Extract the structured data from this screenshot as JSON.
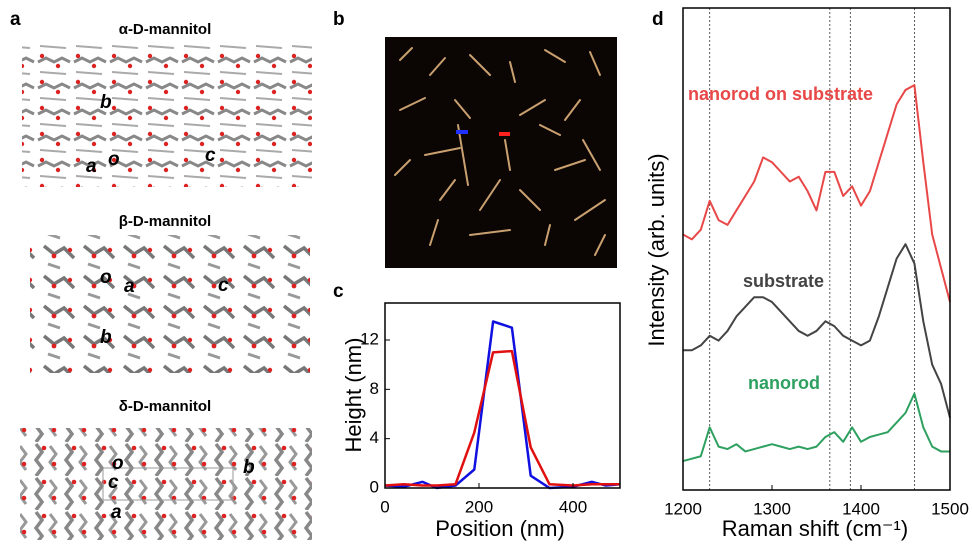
{
  "panel_labels": [
    "a",
    "b",
    "c",
    "d"
  ],
  "structures": [
    {
      "title": "α-D-mannitol",
      "axis_labels": [
        "b",
        "a",
        "o",
        "c"
      ]
    },
    {
      "title": "β-D-mannitol",
      "axis_labels": [
        "o",
        "a",
        "c",
        "b"
      ]
    },
    {
      "title": "δ-D-mannitol",
      "axis_labels": [
        "o",
        "c",
        "a",
        "b"
      ]
    }
  ],
  "chart_data": [
    {
      "type": "line",
      "xlabel": "Position (nm)",
      "ylabel": "Height (nm)",
      "xlim": [
        0,
        500
      ],
      "ylim": [
        0,
        15
      ],
      "xticks": [
        0,
        200,
        400
      ],
      "yticks": [
        0,
        4,
        8,
        12
      ],
      "x": [
        0,
        40,
        80,
        110,
        150,
        190,
        230,
        270,
        310,
        350,
        400,
        440,
        470,
        500
      ],
      "series": [
        {
          "color": "#1010e0",
          "values": [
            0.2,
            0.1,
            0.5,
            0,
            0.2,
            1.5,
            13.5,
            13,
            1,
            0,
            0.1,
            0.5,
            0.2,
            0.3
          ]
        },
        {
          "color": "#e01010",
          "values": [
            0.2,
            0.3,
            0.2,
            0.2,
            0.3,
            4.5,
            11,
            11.1,
            3.3,
            0.3,
            0.2,
            0.3,
            0.3,
            0.3
          ]
        }
      ]
    },
    {
      "type": "line",
      "xlabel": "Raman shift (cm⁻¹)",
      "ylabel": "Intensity (arb. units)",
      "xlim": [
        1200,
        1500
      ],
      "ylim": [
        0,
        10
      ],
      "xticks": [
        1200,
        1300,
        1400,
        1500
      ],
      "vlines": [
        1230,
        1365,
        1388,
        1460
      ],
      "x": [
        1200,
        1210,
        1220,
        1230,
        1240,
        1250,
        1260,
        1270,
        1280,
        1290,
        1300,
        1310,
        1320,
        1330,
        1340,
        1350,
        1360,
        1370,
        1380,
        1390,
        1400,
        1410,
        1420,
        1430,
        1440,
        1450,
        1460,
        1470,
        1480,
        1490,
        1500
      ],
      "series": [
        {
          "name": "nanorod on substrate",
          "color": "#e84848",
          "values": [
            5.3,
            5.2,
            5.4,
            6.0,
            5.6,
            5.5,
            5.8,
            6.1,
            6.4,
            6.9,
            6.8,
            6.6,
            6.4,
            6.5,
            6.2,
            5.8,
            6.6,
            6.6,
            6.1,
            6.3,
            5.9,
            6.2,
            6.8,
            7.4,
            8.0,
            8.3,
            8.4,
            6.8,
            5.3,
            4.6,
            3.9
          ]
        },
        {
          "name": "substrate",
          "color": "#444444",
          "values": [
            2.9,
            2.9,
            3.0,
            3.2,
            3.1,
            3.3,
            3.6,
            3.8,
            4.0,
            4.0,
            3.9,
            3.7,
            3.5,
            3.3,
            3.2,
            3.3,
            3.5,
            3.4,
            3.2,
            3.1,
            3.0,
            3.1,
            3.6,
            4.2,
            4.8,
            5.1,
            4.7,
            3.5,
            2.6,
            2.2,
            1.5
          ]
        },
        {
          "name": "nanorod",
          "color": "#2ea060",
          "values": [
            0.6,
            0.65,
            0.7,
            1.3,
            0.9,
            0.85,
            0.95,
            0.8,
            0.85,
            0.9,
            0.95,
            0.9,
            0.85,
            0.9,
            0.85,
            0.9,
            1.1,
            1.2,
            1.0,
            1.3,
            1.0,
            1.1,
            1.15,
            1.2,
            1.4,
            1.6,
            2.0,
            1.3,
            0.9,
            0.8,
            0.8
          ]
        }
      ]
    }
  ]
}
